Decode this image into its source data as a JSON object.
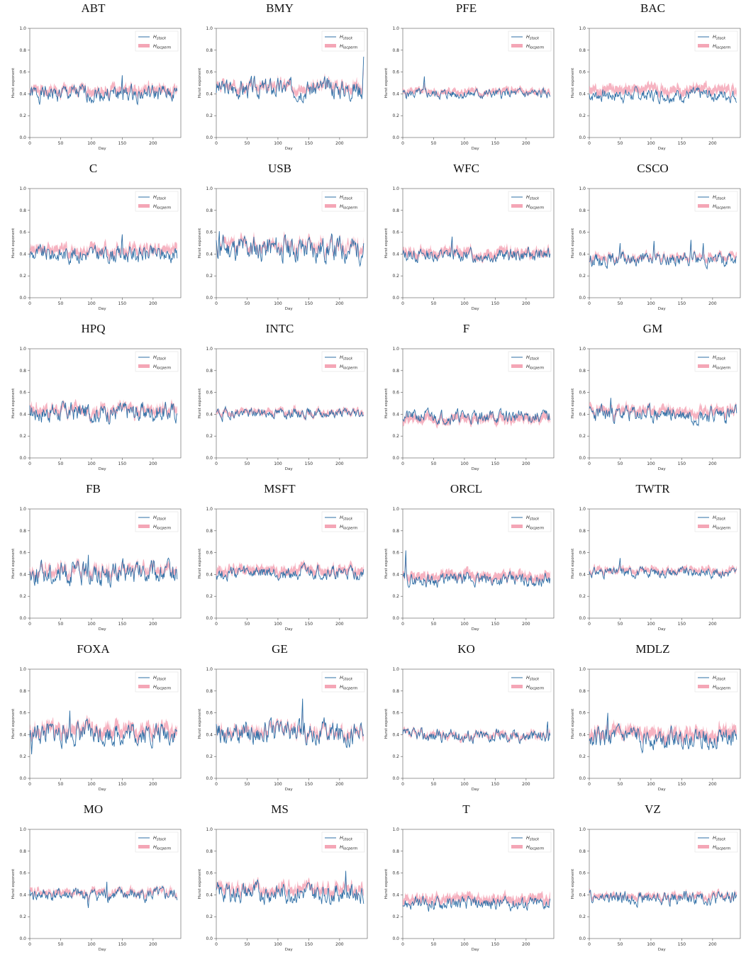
{
  "chart_data": [
    {
      "type": "line",
      "title": "ABT",
      "xlabel": "Day",
      "ylabel": "Hurst exponent",
      "xlim": [
        0,
        245
      ],
      "ylim": [
        0,
        1
      ],
      "xticks": [
        0,
        50,
        100,
        150,
        200
      ],
      "yticks": [
        0.0,
        0.2,
        0.4,
        0.6,
        0.8,
        1.0
      ],
      "legend": "top-right",
      "series": [
        {
          "name": "H_stock",
          "base": 0.4,
          "amp": 0.05,
          "seed": 1,
          "spikes": [
            [
              150,
              0.57
            ]
          ]
        },
        {
          "name": "H_locperm",
          "base": 0.43,
          "amp": 0.04,
          "seed": 2,
          "band": 0.03
        }
      ]
    },
    {
      "type": "line",
      "title": "BMY",
      "xlabel": "Day",
      "ylabel": "Hurst exponent",
      "xlim": [
        0,
        245
      ],
      "ylim": [
        0,
        1
      ],
      "xticks": [
        0,
        50,
        100,
        150,
        200
      ],
      "yticks": [
        0.0,
        0.2,
        0.4,
        0.6,
        0.8,
        1.0
      ],
      "legend": "top-right",
      "series": [
        {
          "name": "H_stock",
          "base": 0.45,
          "amp": 0.06,
          "seed": 3,
          "spikes": [
            [
              240,
              0.74
            ]
          ]
        },
        {
          "name": "H_locperm",
          "base": 0.47,
          "amp": 0.05,
          "seed": 4,
          "band": 0.03
        }
      ]
    },
    {
      "type": "line",
      "title": "PFE",
      "xlabel": "Day",
      "ylabel": "Hurst exponent",
      "xlim": [
        0,
        245
      ],
      "ylim": [
        0,
        1
      ],
      "xticks": [
        0,
        50,
        100,
        150,
        200
      ],
      "yticks": [
        0.0,
        0.2,
        0.4,
        0.6,
        0.8,
        1.0
      ],
      "legend": "top-right",
      "series": [
        {
          "name": "H_stock",
          "base": 0.4,
          "amp": 0.03,
          "seed": 5,
          "spikes": [
            [
              35,
              0.56
            ]
          ]
        },
        {
          "name": "H_locperm",
          "base": 0.42,
          "amp": 0.03,
          "seed": 6,
          "band": 0.02
        }
      ]
    },
    {
      "type": "line",
      "title": "BAC",
      "xlabel": "Day",
      "ylabel": "Hurst exponent",
      "xlim": [
        0,
        245
      ],
      "ylim": [
        0,
        1
      ],
      "xticks": [
        0,
        50,
        100,
        150,
        200
      ],
      "yticks": [
        0.0,
        0.2,
        0.4,
        0.6,
        0.8,
        1.0
      ],
      "legend": "top-right",
      "series": [
        {
          "name": "H_stock",
          "base": 0.39,
          "amp": 0.04,
          "seed": 7,
          "spikes": []
        },
        {
          "name": "H_locperm",
          "base": 0.44,
          "amp": 0.04,
          "seed": 8,
          "band": 0.03
        }
      ]
    },
    {
      "type": "line",
      "title": "C",
      "xlabel": "Day",
      "ylabel": "Hurst exponent",
      "xlim": [
        0,
        245
      ],
      "ylim": [
        0,
        1
      ],
      "xticks": [
        0,
        50,
        100,
        150,
        200
      ],
      "yticks": [
        0.0,
        0.2,
        0.4,
        0.6,
        0.8,
        1.0
      ],
      "legend": "top-right",
      "series": [
        {
          "name": "H_stock",
          "base": 0.4,
          "amp": 0.05,
          "seed": 9,
          "spikes": [
            [
              150,
              0.58
            ]
          ]
        },
        {
          "name": "H_locperm",
          "base": 0.44,
          "amp": 0.05,
          "seed": 10,
          "band": 0.03
        }
      ]
    },
    {
      "type": "line",
      "title": "USB",
      "xlabel": "Day",
      "ylabel": "Hurst exponent",
      "xlim": [
        0,
        245
      ],
      "ylim": [
        0,
        1
      ],
      "xticks": [
        0,
        50,
        100,
        150,
        200
      ],
      "yticks": [
        0.0,
        0.2,
        0.4,
        0.6,
        0.8,
        1.0
      ],
      "legend": "top-right",
      "series": [
        {
          "name": "H_stock",
          "base": 0.45,
          "amp": 0.08,
          "seed": 11,
          "spikes": [
            [
              5,
              0.61
            ]
          ]
        },
        {
          "name": "H_locperm",
          "base": 0.48,
          "amp": 0.07,
          "seed": 12,
          "band": 0.03
        }
      ]
    },
    {
      "type": "line",
      "title": "WFC",
      "xlabel": "Day",
      "ylabel": "Hurst exponent",
      "xlim": [
        0,
        245
      ],
      "ylim": [
        0,
        1
      ],
      "xticks": [
        0,
        50,
        100,
        150,
        200
      ],
      "yticks": [
        0.0,
        0.2,
        0.4,
        0.6,
        0.8,
        1.0
      ],
      "legend": "top-right",
      "series": [
        {
          "name": "H_stock",
          "base": 0.39,
          "amp": 0.04,
          "seed": 13,
          "spikes": [
            [
              80,
              0.56
            ]
          ]
        },
        {
          "name": "H_locperm",
          "base": 0.41,
          "amp": 0.04,
          "seed": 14,
          "band": 0.03
        }
      ]
    },
    {
      "type": "line",
      "title": "CSCO",
      "xlabel": "Day",
      "ylabel": "Hurst exponent",
      "xlim": [
        0,
        245
      ],
      "ylim": [
        0,
        1
      ],
      "xticks": [
        0,
        50,
        100,
        150,
        200
      ],
      "yticks": [
        0.0,
        0.2,
        0.4,
        0.6,
        0.8,
        1.0
      ],
      "legend": "top-right",
      "series": [
        {
          "name": "H_stock",
          "base": 0.35,
          "amp": 0.04,
          "seed": 15,
          "spikes": [
            [
              50,
              0.5
            ],
            [
              105,
              0.52
            ],
            [
              165,
              0.53
            ],
            [
              185,
              0.5
            ]
          ]
        },
        {
          "name": "H_locperm",
          "base": 0.37,
          "amp": 0.04,
          "seed": 16,
          "band": 0.02
        }
      ]
    },
    {
      "type": "line",
      "title": "HPQ",
      "xlabel": "Day",
      "ylabel": "Hurst exponent",
      "xlim": [
        0,
        245
      ],
      "ylim": [
        0,
        1
      ],
      "xticks": [
        0,
        50,
        100,
        150,
        200
      ],
      "yticks": [
        0.0,
        0.2,
        0.4,
        0.6,
        0.8,
        1.0
      ],
      "legend": "top-right",
      "series": [
        {
          "name": "H_stock",
          "base": 0.42,
          "amp": 0.06,
          "seed": 17,
          "spikes": []
        },
        {
          "name": "H_locperm",
          "base": 0.44,
          "amp": 0.05,
          "seed": 18,
          "band": 0.03
        }
      ]
    },
    {
      "type": "line",
      "title": "INTC",
      "xlabel": "Day",
      "ylabel": "Hurst exponent",
      "xlim": [
        0,
        245
      ],
      "ylim": [
        0,
        1
      ],
      "xticks": [
        0,
        50,
        100,
        150,
        200
      ],
      "yticks": [
        0.0,
        0.2,
        0.4,
        0.6,
        0.8,
        1.0
      ],
      "legend": "top-right",
      "series": [
        {
          "name": "H_stock",
          "base": 0.41,
          "amp": 0.03,
          "seed": 19,
          "spikes": [
            [
              10,
              0.33
            ]
          ]
        },
        {
          "name": "H_locperm",
          "base": 0.42,
          "amp": 0.03,
          "seed": 20,
          "band": 0.02
        }
      ]
    },
    {
      "type": "line",
      "title": "F",
      "xlabel": "Day",
      "ylabel": "Hurst exponent",
      "xlim": [
        0,
        245
      ],
      "ylim": [
        0,
        1
      ],
      "xticks": [
        0,
        50,
        100,
        150,
        200
      ],
      "yticks": [
        0.0,
        0.2,
        0.4,
        0.6,
        0.8,
        1.0
      ],
      "legend": "top-right",
      "series": [
        {
          "name": "H_stock",
          "base": 0.38,
          "amp": 0.04,
          "seed": 21,
          "spikes": []
        },
        {
          "name": "H_locperm",
          "base": 0.36,
          "amp": 0.03,
          "seed": 22,
          "band": 0.03
        }
      ]
    },
    {
      "type": "line",
      "title": "GM",
      "xlabel": "Day",
      "ylabel": "Hurst exponent",
      "xlim": [
        0,
        245
      ],
      "ylim": [
        0,
        1
      ],
      "xticks": [
        0,
        50,
        100,
        150,
        200
      ],
      "yticks": [
        0.0,
        0.2,
        0.4,
        0.6,
        0.8,
        1.0
      ],
      "legend": "top-right",
      "series": [
        {
          "name": "H_stock",
          "base": 0.4,
          "amp": 0.05,
          "seed": 23,
          "spikes": [
            [
              35,
              0.55
            ]
          ]
        },
        {
          "name": "H_locperm",
          "base": 0.43,
          "amp": 0.04,
          "seed": 24,
          "band": 0.03
        }
      ]
    },
    {
      "type": "line",
      "title": "FB",
      "xlabel": "Day",
      "ylabel": "Hurst exponent",
      "xlim": [
        0,
        245
      ],
      "ylim": [
        0,
        1
      ],
      "xticks": [
        0,
        50,
        100,
        150,
        200
      ],
      "yticks": [
        0.0,
        0.2,
        0.4,
        0.6,
        0.8,
        1.0
      ],
      "legend": "top-right",
      "series": [
        {
          "name": "H_stock",
          "base": 0.41,
          "amp": 0.07,
          "seed": 25,
          "spikes": [
            [
              95,
              0.58
            ]
          ]
        },
        {
          "name": "H_locperm",
          "base": 0.44,
          "amp": 0.06,
          "seed": 26,
          "band": 0.03
        }
      ]
    },
    {
      "type": "line",
      "title": "MSFT",
      "xlabel": "Day",
      "ylabel": "Hurst exponent",
      "xlim": [
        0,
        245
      ],
      "ylim": [
        0,
        1
      ],
      "xticks": [
        0,
        50,
        100,
        150,
        200
      ],
      "yticks": [
        0.0,
        0.2,
        0.4,
        0.6,
        0.8,
        1.0
      ],
      "legend": "top-right",
      "series": [
        {
          "name": "H_stock",
          "base": 0.41,
          "amp": 0.04,
          "seed": 27,
          "spikes": []
        },
        {
          "name": "H_locperm",
          "base": 0.44,
          "amp": 0.04,
          "seed": 28,
          "band": 0.03
        }
      ]
    },
    {
      "type": "line",
      "title": "ORCL",
      "xlabel": "Day",
      "ylabel": "Hurst exponent",
      "xlim": [
        0,
        245
      ],
      "ylim": [
        0,
        1
      ],
      "xticks": [
        0,
        50,
        100,
        150,
        200
      ],
      "yticks": [
        0.0,
        0.2,
        0.4,
        0.6,
        0.8,
        1.0
      ],
      "legend": "top-right",
      "series": [
        {
          "name": "H_stock",
          "base": 0.35,
          "amp": 0.04,
          "seed": 29,
          "spikes": [
            [
              5,
              0.62
            ]
          ]
        },
        {
          "name": "H_locperm",
          "base": 0.38,
          "amp": 0.04,
          "seed": 30,
          "band": 0.03
        }
      ]
    },
    {
      "type": "line",
      "title": "TWTR",
      "xlabel": "Day",
      "ylabel": "Hurst exponent",
      "xlim": [
        0,
        245
      ],
      "ylim": [
        0,
        1
      ],
      "xticks": [
        0,
        50,
        100,
        150,
        200
      ],
      "yticks": [
        0.0,
        0.2,
        0.4,
        0.6,
        0.8,
        1.0
      ],
      "legend": "top-right",
      "series": [
        {
          "name": "H_stock",
          "base": 0.42,
          "amp": 0.03,
          "seed": 31,
          "spikes": [
            [
              50,
              0.55
            ]
          ]
        },
        {
          "name": "H_locperm",
          "base": 0.44,
          "amp": 0.03,
          "seed": 32,
          "band": 0.02
        }
      ]
    },
    {
      "type": "line",
      "title": "FOXA",
      "xlabel": "Day",
      "ylabel": "Hurst exponent",
      "xlim": [
        0,
        245
      ],
      "ylim": [
        0,
        1
      ],
      "xticks": [
        0,
        50,
        100,
        150,
        200
      ],
      "yticks": [
        0.0,
        0.2,
        0.4,
        0.6,
        0.8,
        1.0
      ],
      "legend": "top-right",
      "series": [
        {
          "name": "H_stock",
          "base": 0.41,
          "amp": 0.07,
          "seed": 33,
          "spikes": [
            [
              3,
              0.22
            ],
            [
              65,
              0.62
            ]
          ]
        },
        {
          "name": "H_locperm",
          "base": 0.45,
          "amp": 0.06,
          "seed": 34,
          "band": 0.04
        }
      ]
    },
    {
      "type": "line",
      "title": "GE",
      "xlabel": "Day",
      "ylabel": "Hurst exponent",
      "xlim": [
        0,
        245
      ],
      "ylim": [
        0,
        1
      ],
      "xticks": [
        0,
        50,
        100,
        150,
        200
      ],
      "yticks": [
        0.0,
        0.2,
        0.4,
        0.6,
        0.8,
        1.0
      ],
      "legend": "top-right",
      "series": [
        {
          "name": "H_stock",
          "base": 0.42,
          "amp": 0.07,
          "seed": 35,
          "spikes": [
            [
              140,
              0.73
            ]
          ]
        },
        {
          "name": "H_locperm",
          "base": 0.43,
          "amp": 0.06,
          "seed": 36,
          "band": 0.03
        }
      ]
    },
    {
      "type": "line",
      "title": "KO",
      "xlabel": "Day",
      "ylabel": "Hurst exponent",
      "xlim": [
        0,
        245
      ],
      "ylim": [
        0,
        1
      ],
      "xticks": [
        0,
        50,
        100,
        150,
        200
      ],
      "yticks": [
        0.0,
        0.2,
        0.4,
        0.6,
        0.8,
        1.0
      ],
      "legend": "top-right",
      "series": [
        {
          "name": "H_stock",
          "base": 0.39,
          "amp": 0.04,
          "seed": 37,
          "spikes": [
            [
              235,
              0.52
            ]
          ]
        },
        {
          "name": "H_locperm",
          "base": 0.4,
          "amp": 0.04,
          "seed": 38,
          "band": 0.02
        }
      ]
    },
    {
      "type": "line",
      "title": "MDLZ",
      "xlabel": "Day",
      "ylabel": "Hurst exponent",
      "xlim": [
        0,
        245
      ],
      "ylim": [
        0,
        1
      ],
      "xticks": [
        0,
        50,
        100,
        150,
        200
      ],
      "yticks": [
        0.0,
        0.2,
        0.4,
        0.6,
        0.8,
        1.0
      ],
      "legend": "top-right",
      "series": [
        {
          "name": "H_stock",
          "base": 0.37,
          "amp": 0.06,
          "seed": 39,
          "spikes": [
            [
              30,
              0.6
            ]
          ]
        },
        {
          "name": "H_locperm",
          "base": 0.41,
          "amp": 0.06,
          "seed": 40,
          "band": 0.04
        }
      ]
    },
    {
      "type": "line",
      "title": "MO",
      "xlabel": "Day",
      "ylabel": "Hurst exponent",
      "xlim": [
        0,
        245
      ],
      "ylim": [
        0,
        1
      ],
      "xticks": [
        0,
        50,
        100,
        150,
        200
      ],
      "yticks": [
        0.0,
        0.2,
        0.4,
        0.6,
        0.8,
        1.0
      ],
      "legend": "top-right",
      "series": [
        {
          "name": "H_stock",
          "base": 0.4,
          "amp": 0.04,
          "seed": 41,
          "spikes": [
            [
              95,
              0.28
            ],
            [
              125,
              0.52
            ]
          ]
        },
        {
          "name": "H_locperm",
          "base": 0.42,
          "amp": 0.04,
          "seed": 42,
          "band": 0.02
        }
      ]
    },
    {
      "type": "line",
      "title": "MS",
      "xlabel": "Day",
      "ylabel": "Hurst exponent",
      "xlim": [
        0,
        245
      ],
      "ylim": [
        0,
        1
      ],
      "xticks": [
        0,
        50,
        100,
        150,
        200
      ],
      "yticks": [
        0.0,
        0.2,
        0.4,
        0.6,
        0.8,
        1.0
      ],
      "legend": "top-right",
      "series": [
        {
          "name": "H_stock",
          "base": 0.42,
          "amp": 0.06,
          "seed": 43,
          "spikes": [
            [
              210,
              0.62
            ]
          ]
        },
        {
          "name": "H_locperm",
          "base": 0.46,
          "amp": 0.05,
          "seed": 44,
          "band": 0.03
        }
      ]
    },
    {
      "type": "line",
      "title": "T",
      "xlabel": "Day",
      "ylabel": "Hurst exponent",
      "xlim": [
        0,
        245
      ],
      "ylim": [
        0,
        1
      ],
      "xticks": [
        0,
        50,
        100,
        150,
        200
      ],
      "yticks": [
        0.0,
        0.2,
        0.4,
        0.6,
        0.8,
        1.0
      ],
      "legend": "top-right",
      "series": [
        {
          "name": "H_stock",
          "base": 0.32,
          "amp": 0.04,
          "seed": 45,
          "spikes": []
        },
        {
          "name": "H_locperm",
          "base": 0.36,
          "amp": 0.04,
          "seed": 46,
          "band": 0.03
        }
      ]
    },
    {
      "type": "line",
      "title": "VZ",
      "xlabel": "Day",
      "ylabel": "Hurst exponent",
      "xlim": [
        0,
        245
      ],
      "ylim": [
        0,
        1
      ],
      "xticks": [
        0,
        50,
        100,
        150,
        200
      ],
      "yticks": [
        0.0,
        0.2,
        0.4,
        0.6,
        0.8,
        1.0
      ],
      "legend": "top-right",
      "series": [
        {
          "name": "H_stock",
          "base": 0.37,
          "amp": 0.04,
          "seed": 47,
          "spikes": []
        },
        {
          "name": "H_locperm",
          "base": 0.39,
          "amp": 0.03,
          "seed": 48,
          "band": 0.02
        }
      ]
    }
  ],
  "legend": {
    "stock_label": "H",
    "stock_sub": "stock",
    "perm_label": "H",
    "perm_sub": "locperm"
  },
  "colors": {
    "stock": "#2e6fa6",
    "perm": "#f4a6b6",
    "axis": "#555555",
    "tick_text": "#333333"
  }
}
